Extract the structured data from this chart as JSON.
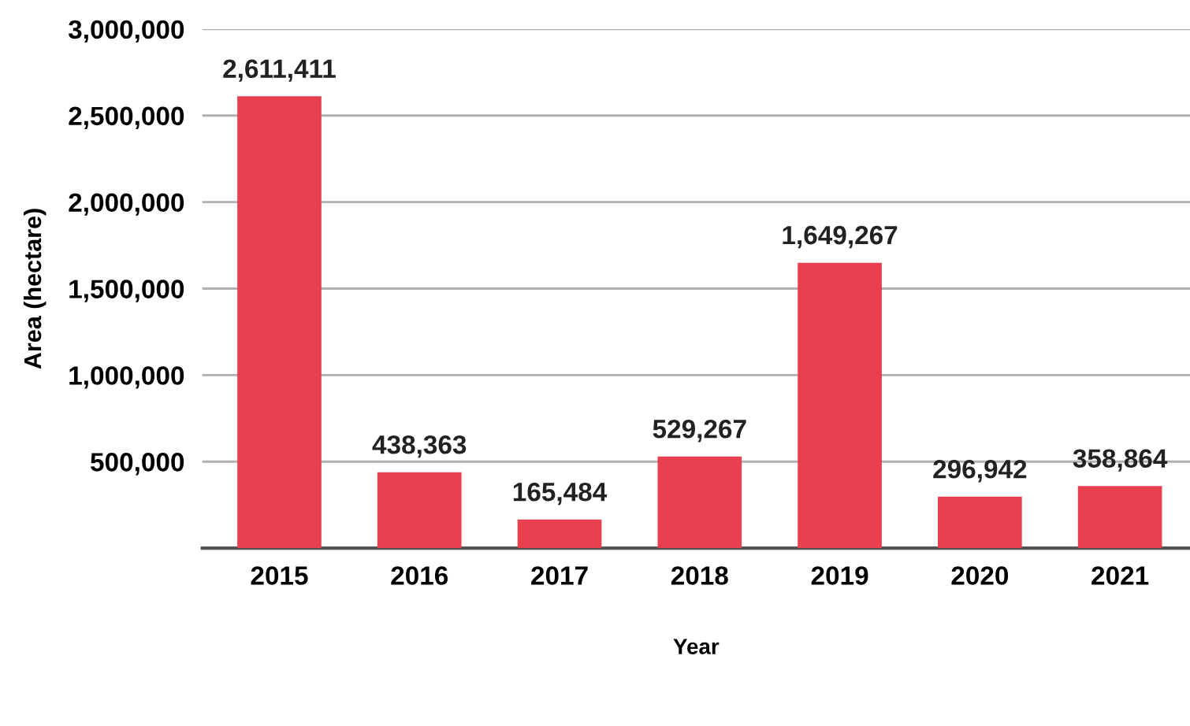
{
  "chart_data": {
    "type": "bar",
    "xlabel": "Year",
    "ylabel": "Area (hectare)",
    "categories": [
      "2015",
      "2016",
      "2017",
      "2018",
      "2019",
      "2020",
      "2021"
    ],
    "values": [
      2611411,
      438363,
      165484,
      529267,
      1649267,
      296942,
      358864
    ],
    "value_labels": [
      "2,611,411",
      "438,363",
      "165,484",
      "529,267",
      "1,649,267",
      "296,942",
      "358,864"
    ],
    "color": "#e8404f",
    "ylim": [
      0,
      3000000
    ],
    "yticks": [
      {
        "value": 500000,
        "label": "500,000"
      },
      {
        "value": 1000000,
        "label": "1,000,000"
      },
      {
        "value": 1500000,
        "label": "1,500,000"
      },
      {
        "value": 2000000,
        "label": "2,000,000"
      },
      {
        "value": 2500000,
        "label": "2,500,000"
      },
      {
        "value": 3000000,
        "label": "3,000,000"
      }
    ],
    "grid": "y",
    "legend": false
  }
}
